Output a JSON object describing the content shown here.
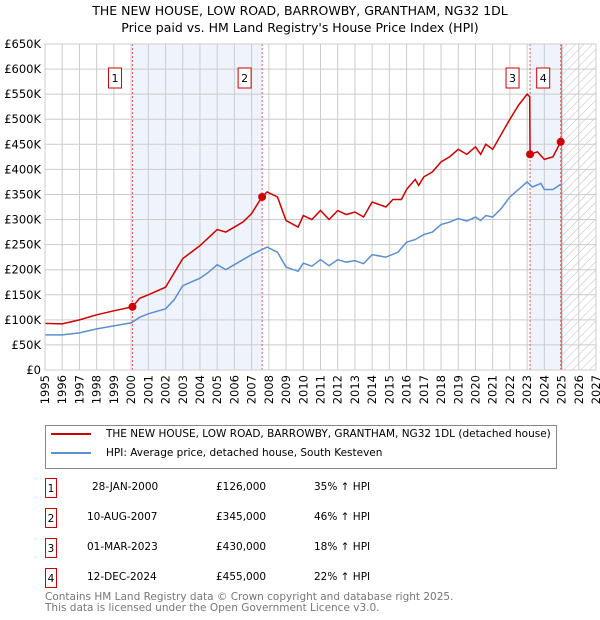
{
  "chart_data": {
    "type": "line",
    "title": "THE NEW HOUSE, LOW ROAD, BARROWBY, GRANTHAM, NG32 1DL",
    "subtitle": "Price paid vs. HM Land Registry's House Price Index (HPI)",
    "xlim": [
      1995,
      2027
    ],
    "ylim": [
      0,
      650000
    ],
    "yticks": [
      "£0",
      "£50K",
      "£100K",
      "£150K",
      "£200K",
      "£250K",
      "£300K",
      "£350K",
      "£400K",
      "£450K",
      "£500K",
      "£550K",
      "£600K",
      "£650K"
    ],
    "xticks": [
      "1995",
      "1996",
      "1997",
      "1998",
      "1999",
      "2000",
      "2001",
      "2002",
      "2003",
      "2004",
      "2005",
      "2006",
      "2007",
      "2008",
      "2009",
      "2010",
      "2011",
      "2012",
      "2013",
      "2014",
      "2015",
      "2016",
      "2017",
      "2018",
      "2019",
      "2020",
      "2021",
      "2022",
      "2023",
      "2024",
      "2025",
      "2026",
      "2027"
    ],
    "grid": true,
    "series": [
      {
        "name": "THE NEW HOUSE, LOW ROAD, BARROWBY, GRANTHAM, NG32 1DL (detached house)",
        "color": "#cc0000",
        "x": [
          1995,
          1996,
          1997,
          1998,
          1999,
          2000.08,
          2000.5,
          2001,
          2002,
          2003,
          2003.5,
          2004,
          2005,
          2005.5,
          2006,
          2006.5,
          2007,
          2007.6,
          2007.9,
          2008.5,
          2009,
          2009.7,
          2010,
          2010.5,
          2011,
          2011.5,
          2012,
          2012.5,
          2013,
          2013.5,
          2014,
          2014.8,
          2015.2,
          2015.7,
          2016,
          2016.5,
          2016.7,
          2017,
          2017.5,
          2018,
          2018.5,
          2019,
          2019.5,
          2020,
          2020.3,
          2020.6,
          2021,
          2021.5,
          2022,
          2022.5,
          2023,
          2023.15,
          2023.17,
          2023.6,
          2024,
          2024.5,
          2024.95
        ],
        "values": [
          93,
          92,
          100,
          110,
          118,
          126,
          143,
          150,
          165,
          222,
          235,
          248,
          280,
          275,
          285,
          295,
          312,
          345,
          355,
          345,
          298,
          285,
          308,
          300,
          318,
          300,
          318,
          310,
          315,
          305,
          335,
          325,
          340,
          340,
          360,
          380,
          368,
          385,
          395,
          415,
          425,
          440,
          430,
          445,
          430,
          450,
          440,
          470,
          500,
          528,
          550,
          545,
          430,
          435,
          420,
          425,
          455
        ]
      },
      {
        "name": "HPI: Average price, detached house, South Kesteven",
        "color": "#5b8fd0",
        "x": [
          1995,
          1996,
          1997,
          1998,
          1999,
          2000,
          2000.5,
          2001,
          2002,
          2002.5,
          2003,
          2004,
          2004.5,
          2005,
          2005.5,
          2006,
          2007,
          2007.9,
          2008.5,
          2009,
          2009.7,
          2010,
          2010.5,
          2011,
          2011.5,
          2012,
          2012.5,
          2013,
          2013.5,
          2014,
          2014.8,
          2015.5,
          2016,
          2016.5,
          2017,
          2017.5,
          2018,
          2018.5,
          2019,
          2019.5,
          2020,
          2020.3,
          2020.6,
          2021,
          2021.5,
          2022,
          2022.5,
          2023,
          2023.3,
          2023.8,
          2024,
          2024.5,
          2024.95
        ],
        "values": [
          70,
          70,
          74,
          82,
          88,
          94,
          105,
          112,
          122,
          140,
          168,
          183,
          195,
          210,
          200,
          210,
          230,
          245,
          235,
          205,
          197,
          213,
          207,
          220,
          208,
          220,
          215,
          218,
          212,
          230,
          225,
          235,
          255,
          260,
          270,
          275,
          290,
          295,
          302,
          297,
          305,
          298,
          308,
          305,
          322,
          345,
          360,
          375,
          365,
          372,
          360,
          360,
          370
        ]
      }
    ],
    "value_unit": "thousands GBP",
    "sales": [
      {
        "n": "1",
        "x": 2000.08,
        "price": 126,
        "date": "28-JAN-2000",
        "price_label": "£126,000",
        "hpi": "35% ↑ HPI"
      },
      {
        "n": "2",
        "x": 2007.61,
        "price": 345,
        "date": "10-AUG-2007",
        "price_label": "£345,000",
        "hpi": "46% ↑ HPI"
      },
      {
        "n": "3",
        "x": 2023.17,
        "price": 430,
        "date": "01-MAR-2023",
        "price_label": "£430,000",
        "hpi": "18% ↑ HPI"
      },
      {
        "n": "4",
        "x": 2024.95,
        "price": 455,
        "date": "12-DEC-2024",
        "price_label": "£455,000",
        "hpi": "22% ↑ HPI"
      }
    ],
    "forecast_start": 2025.0
  },
  "footer": {
    "line1": "Contains HM Land Registry data © Crown copyright and database right 2025.",
    "line2": "This data is licensed under the Open Government Licence v3.0."
  }
}
